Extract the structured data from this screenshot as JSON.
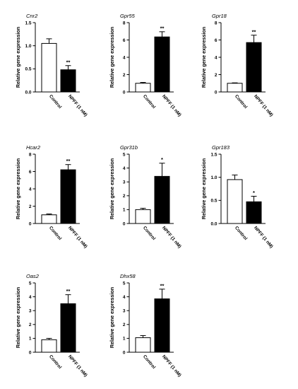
{
  "chart_data": [
    {
      "type": "bar",
      "title": "Cnr2",
      "ylabel": "Relative gene expression",
      "categories": [
        "Control",
        "NPFF (1 nM)"
      ],
      "values": [
        1.05,
        0.48
      ],
      "errors": [
        0.1,
        0.09
      ],
      "significance": [
        "",
        "**"
      ],
      "ylim": [
        0,
        1.5
      ],
      "yticks": [
        "0.0",
        "0.5",
        "1.0",
        "1.5"
      ]
    },
    {
      "type": "bar",
      "title": "Gpr55",
      "ylabel": "Relative gene expression",
      "categories": [
        "Control",
        "NPFF (1 nM)"
      ],
      "values": [
        1.0,
        6.35
      ],
      "errors": [
        0.1,
        0.6
      ],
      "significance": [
        "",
        "**"
      ],
      "ylim": [
        0,
        8
      ],
      "yticks": [
        "0",
        "2",
        "4",
        "6",
        "8"
      ]
    },
    {
      "type": "bar",
      "title": "Gpr18",
      "ylabel": "Relative gene expression",
      "categories": [
        "Control",
        "NPFF (1 nM)"
      ],
      "values": [
        1.0,
        5.7
      ],
      "errors": [
        0.05,
        0.85
      ],
      "significance": [
        "",
        "**"
      ],
      "ylim": [
        0,
        8
      ],
      "yticks": [
        "0",
        "2",
        "4",
        "6",
        "8"
      ]
    },
    {
      "type": "bar",
      "title": "Hcar2",
      "ylabel": "Relative gene expression",
      "categories": [
        "Control",
        "NPFF (1 nM)"
      ],
      "values": [
        1.0,
        6.2
      ],
      "errors": [
        0.1,
        0.6
      ],
      "significance": [
        "",
        "**"
      ],
      "ylim": [
        0,
        8
      ],
      "yticks": [
        "0",
        "2",
        "4",
        "6",
        "8"
      ]
    },
    {
      "type": "bar",
      "title": "Gpr31b",
      "ylabel": "Relative gene expression",
      "categories": [
        "Control",
        "NPFF (1 nM)"
      ],
      "values": [
        1.0,
        3.4
      ],
      "errors": [
        0.1,
        0.95
      ],
      "significance": [
        "",
        "*"
      ],
      "ylim": [
        0,
        5
      ],
      "yticks": [
        "0",
        "1",
        "2",
        "3",
        "4",
        "5"
      ]
    },
    {
      "type": "bar",
      "title": "Gpr183",
      "ylabel": "Relative gene expression",
      "categories": [
        "Control",
        "NPFF (1 nM)"
      ],
      "values": [
        0.95,
        0.47
      ],
      "errors": [
        0.1,
        0.12
      ],
      "significance": [
        "",
        "*"
      ],
      "ylim": [
        0,
        1.5
      ],
      "yticks": [
        "0.0",
        "0.5",
        "1.0",
        "1.5"
      ]
    },
    {
      "type": "bar",
      "title": "Oas2",
      "ylabel": "Relative gene expression",
      "categories": [
        "Control",
        "NPFF (1 nM)"
      ],
      "values": [
        0.9,
        3.5
      ],
      "errors": [
        0.1,
        0.65
      ],
      "significance": [
        "",
        "**"
      ],
      "ylim": [
        0,
        5
      ],
      "yticks": [
        "0",
        "1",
        "2",
        "3",
        "4",
        "5"
      ]
    },
    {
      "type": "bar",
      "title": "Dhx58",
      "ylabel": "Relative gene expression",
      "categories": [
        "Control",
        "NPFF (1 nM)"
      ],
      "values": [
        1.05,
        3.85
      ],
      "errors": [
        0.15,
        0.7
      ],
      "significance": [
        "",
        "**"
      ],
      "ylim": [
        0,
        5
      ],
      "yticks": [
        "0",
        "1",
        "2",
        "3",
        "4",
        "5"
      ]
    }
  ]
}
